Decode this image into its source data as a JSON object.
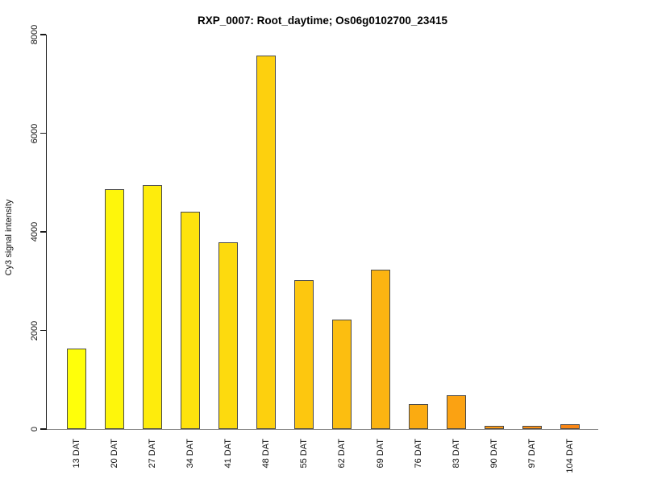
{
  "title": "RXP_0007: Root_daytime; Os06g0102700_23415",
  "chart_data": {
    "type": "bar",
    "title": "RXP_0007: Root_daytime; Os06g0102700_23415",
    "xlabel": "",
    "ylabel": "Cy3 signal intensity",
    "categories": [
      "13 DAT",
      "20 DAT",
      "27 DAT",
      "34 DAT",
      "41 DAT",
      "48 DAT",
      "55 DAT",
      "62 DAT",
      "69 DAT",
      "76 DAT",
      "83 DAT",
      "90 DAT",
      "97 DAT",
      "104 DAT"
    ],
    "values": [
      1630,
      4860,
      4950,
      4410,
      3780,
      7570,
      3020,
      2220,
      3240,
      510,
      690,
      60,
      60,
      100
    ],
    "bar_colors": [
      "#FFFF0A",
      "#FEF60B",
      "#FEEC0C",
      "#FEE30D",
      "#FDDA0E",
      "#FDD00E",
      "#FDC70F",
      "#FCBE10",
      "#FCB411",
      "#FBAB11",
      "#FBA212",
      "#FB9913",
      "#FA8F14",
      "#FA8614"
    ],
    "bar_border_color": "#4a4a4a",
    "ylim": [
      0,
      8000
    ],
    "yticks": [
      "0",
      "2000",
      "4000",
      "6000",
      "8000"
    ],
    "grid": "off",
    "legend": "none",
    "x_tick_rotation": 90,
    "y_tick_rotation": 90,
    "background_color": "#ffffff",
    "axis_color": "#1a1a1a",
    "baseline_color": "#8a8a8a"
  }
}
